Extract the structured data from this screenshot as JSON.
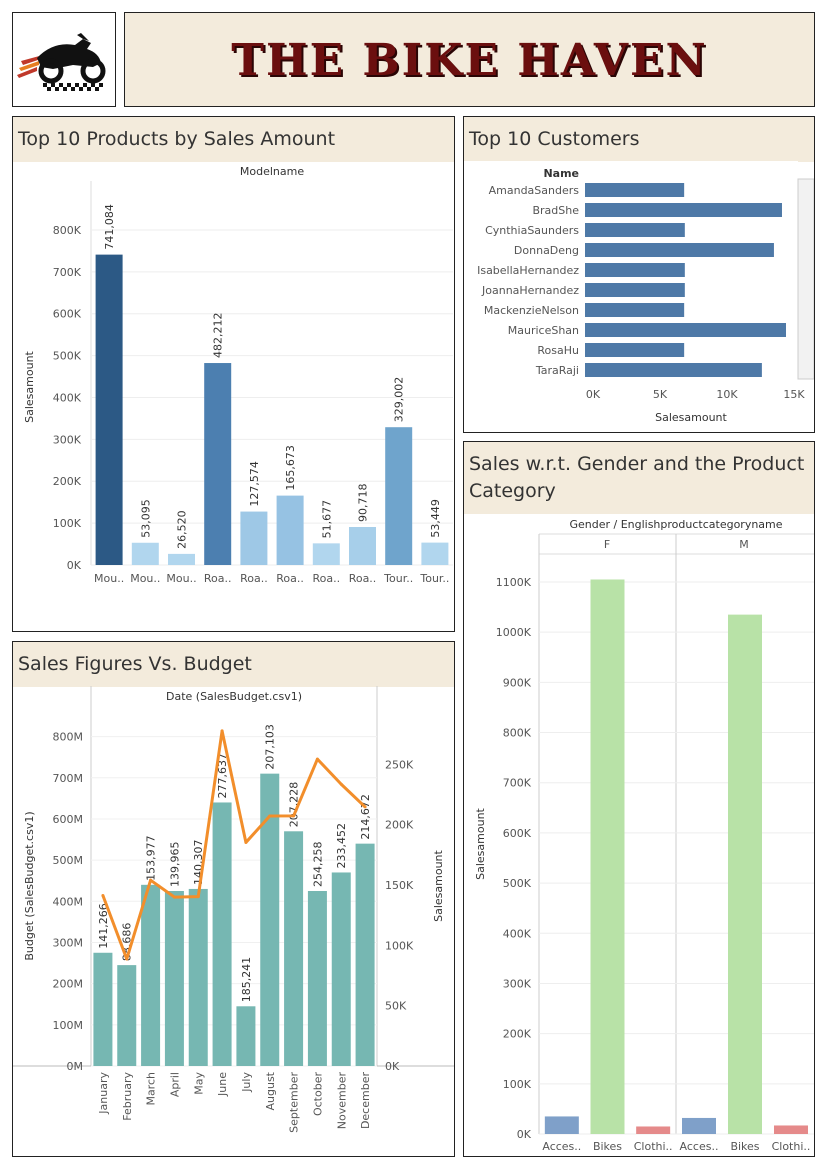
{
  "brand": {
    "title": "THE BIKE HAVEN",
    "logo_icon": "motorbike-logo-icon"
  },
  "colors": {
    "banner_bg": "#f3ebdc",
    "title_red": "#6b0f0f",
    "bar_blue": "#4e79a7",
    "bar_teal": "#76b7b2",
    "line_orange": "#f28e2b",
    "bikes_green": "#b8e2a7",
    "clothing_red": "#e58a8a",
    "accessories_blue": "#7fa0c9"
  },
  "panels": {
    "products": {
      "title": "Top 10 Products by Sales Amount"
    },
    "customers": {
      "title": "Top 10 Customers"
    },
    "gender": {
      "title": "Sales w.r.t. Gender and the Product Category"
    },
    "budget": {
      "title": "Sales Figures Vs. Budget"
    }
  },
  "chart_data": [
    {
      "id": "products",
      "type": "bar",
      "header": "Modelname",
      "ylabel": "Salesamount",
      "ylim": [
        0,
        850000
      ],
      "yticks": [
        "0K",
        "100K",
        "200K",
        "300K",
        "400K",
        "500K",
        "600K",
        "700K",
        "800K"
      ],
      "categories": [
        "Mou..",
        "Mou..",
        "Mou..",
        "Roa..",
        "Roa..",
        "Roa..",
        "Roa..",
        "Roa..",
        "Tour..",
        "Tour.."
      ],
      "values": [
        741084,
        53095,
        26520,
        482212,
        127574,
        165673,
        51677,
        90718,
        329002,
        53449
      ],
      "labels": [
        "741,084",
        "53,095",
        "26,520",
        "482,212",
        "127,574",
        "165,673",
        "51,677",
        "90,718",
        "329,002",
        "53,449"
      ],
      "colors": [
        "#2c5985",
        "#b1d6ee",
        "#b1d6ee",
        "#4c7fb0",
        "#9ec8e6",
        "#96c2e3",
        "#b1d6ee",
        "#a7cfea",
        "#6fa4cc",
        "#b1d6ee"
      ]
    },
    {
      "id": "customers",
      "type": "bar",
      "orientation": "horizontal",
      "header": "Name",
      "xlabel": "Salesamount",
      "xlim": [
        0,
        15500
      ],
      "xticks": [
        "0K",
        "5K",
        "10K",
        "15K"
      ],
      "categories": [
        "AmandaSanders",
        "BradShe",
        "CynthiaSaunders",
        "DonnaDeng",
        "IsabellaHernandez",
        "JoannaHernandez",
        "MackenzieNelson",
        "MauriceShan",
        "RosaHu",
        "TaraRaji"
      ],
      "values": [
        7400,
        14700,
        7450,
        14100,
        7450,
        7450,
        7400,
        15000,
        7400,
        13200
      ]
    },
    {
      "id": "gender",
      "type": "bar",
      "header": "Gender / Englishproductcategoryname",
      "ylabel": "Salesamount",
      "ylim": [
        0,
        1200000
      ],
      "yticks": [
        "0K",
        "100K",
        "200K",
        "300K",
        "400K",
        "500K",
        "600K",
        "700K",
        "800K",
        "900K",
        "1000K",
        "1100K"
      ],
      "groups": [
        "F",
        "M"
      ],
      "categories": [
        "Acces..",
        "Bikes",
        "Clothi.."
      ],
      "series": [
        {
          "values": [
            35000,
            1105000,
            15000
          ]
        },
        {
          "values": [
            32000,
            1035000,
            17000
          ]
        }
      ]
    },
    {
      "id": "budget",
      "type": "bar",
      "header": "Date (SalesBudget.csv1)",
      "ylabel": "Budget (SalesBudget.csv1)",
      "y2label": "Salesamount",
      "ylim": [
        0,
        850000000
      ],
      "y2lim": [
        0,
        290000
      ],
      "yticks": [
        "0M",
        "100M",
        "200M",
        "300M",
        "400M",
        "500M",
        "600M",
        "700M",
        "800M"
      ],
      "y2ticks": [
        "0K",
        "50K",
        "100K",
        "150K",
        "200K",
        "250K"
      ],
      "categories": [
        "January",
        "February",
        "March",
        "April",
        "May",
        "June",
        "July",
        "August",
        "September",
        "October",
        "November",
        "December"
      ],
      "budget": [
        275000000,
        245000000,
        440000000,
        425000000,
        430000000,
        640000000,
        145000000,
        710000000,
        570000000,
        425000000,
        470000000,
        540000000
      ],
      "sales": [
        141266,
        88686,
        153977,
        139965,
        140307,
        277637,
        185241,
        207103,
        207228,
        254258,
        233452,
        214672
      ],
      "labels": [
        "141,266",
        "88,686",
        "153,977",
        "139,965",
        "140,307",
        "277,637",
        "185,241",
        "207,103",
        "207,228",
        "254,258",
        "233,452",
        "214,672"
      ]
    }
  ]
}
